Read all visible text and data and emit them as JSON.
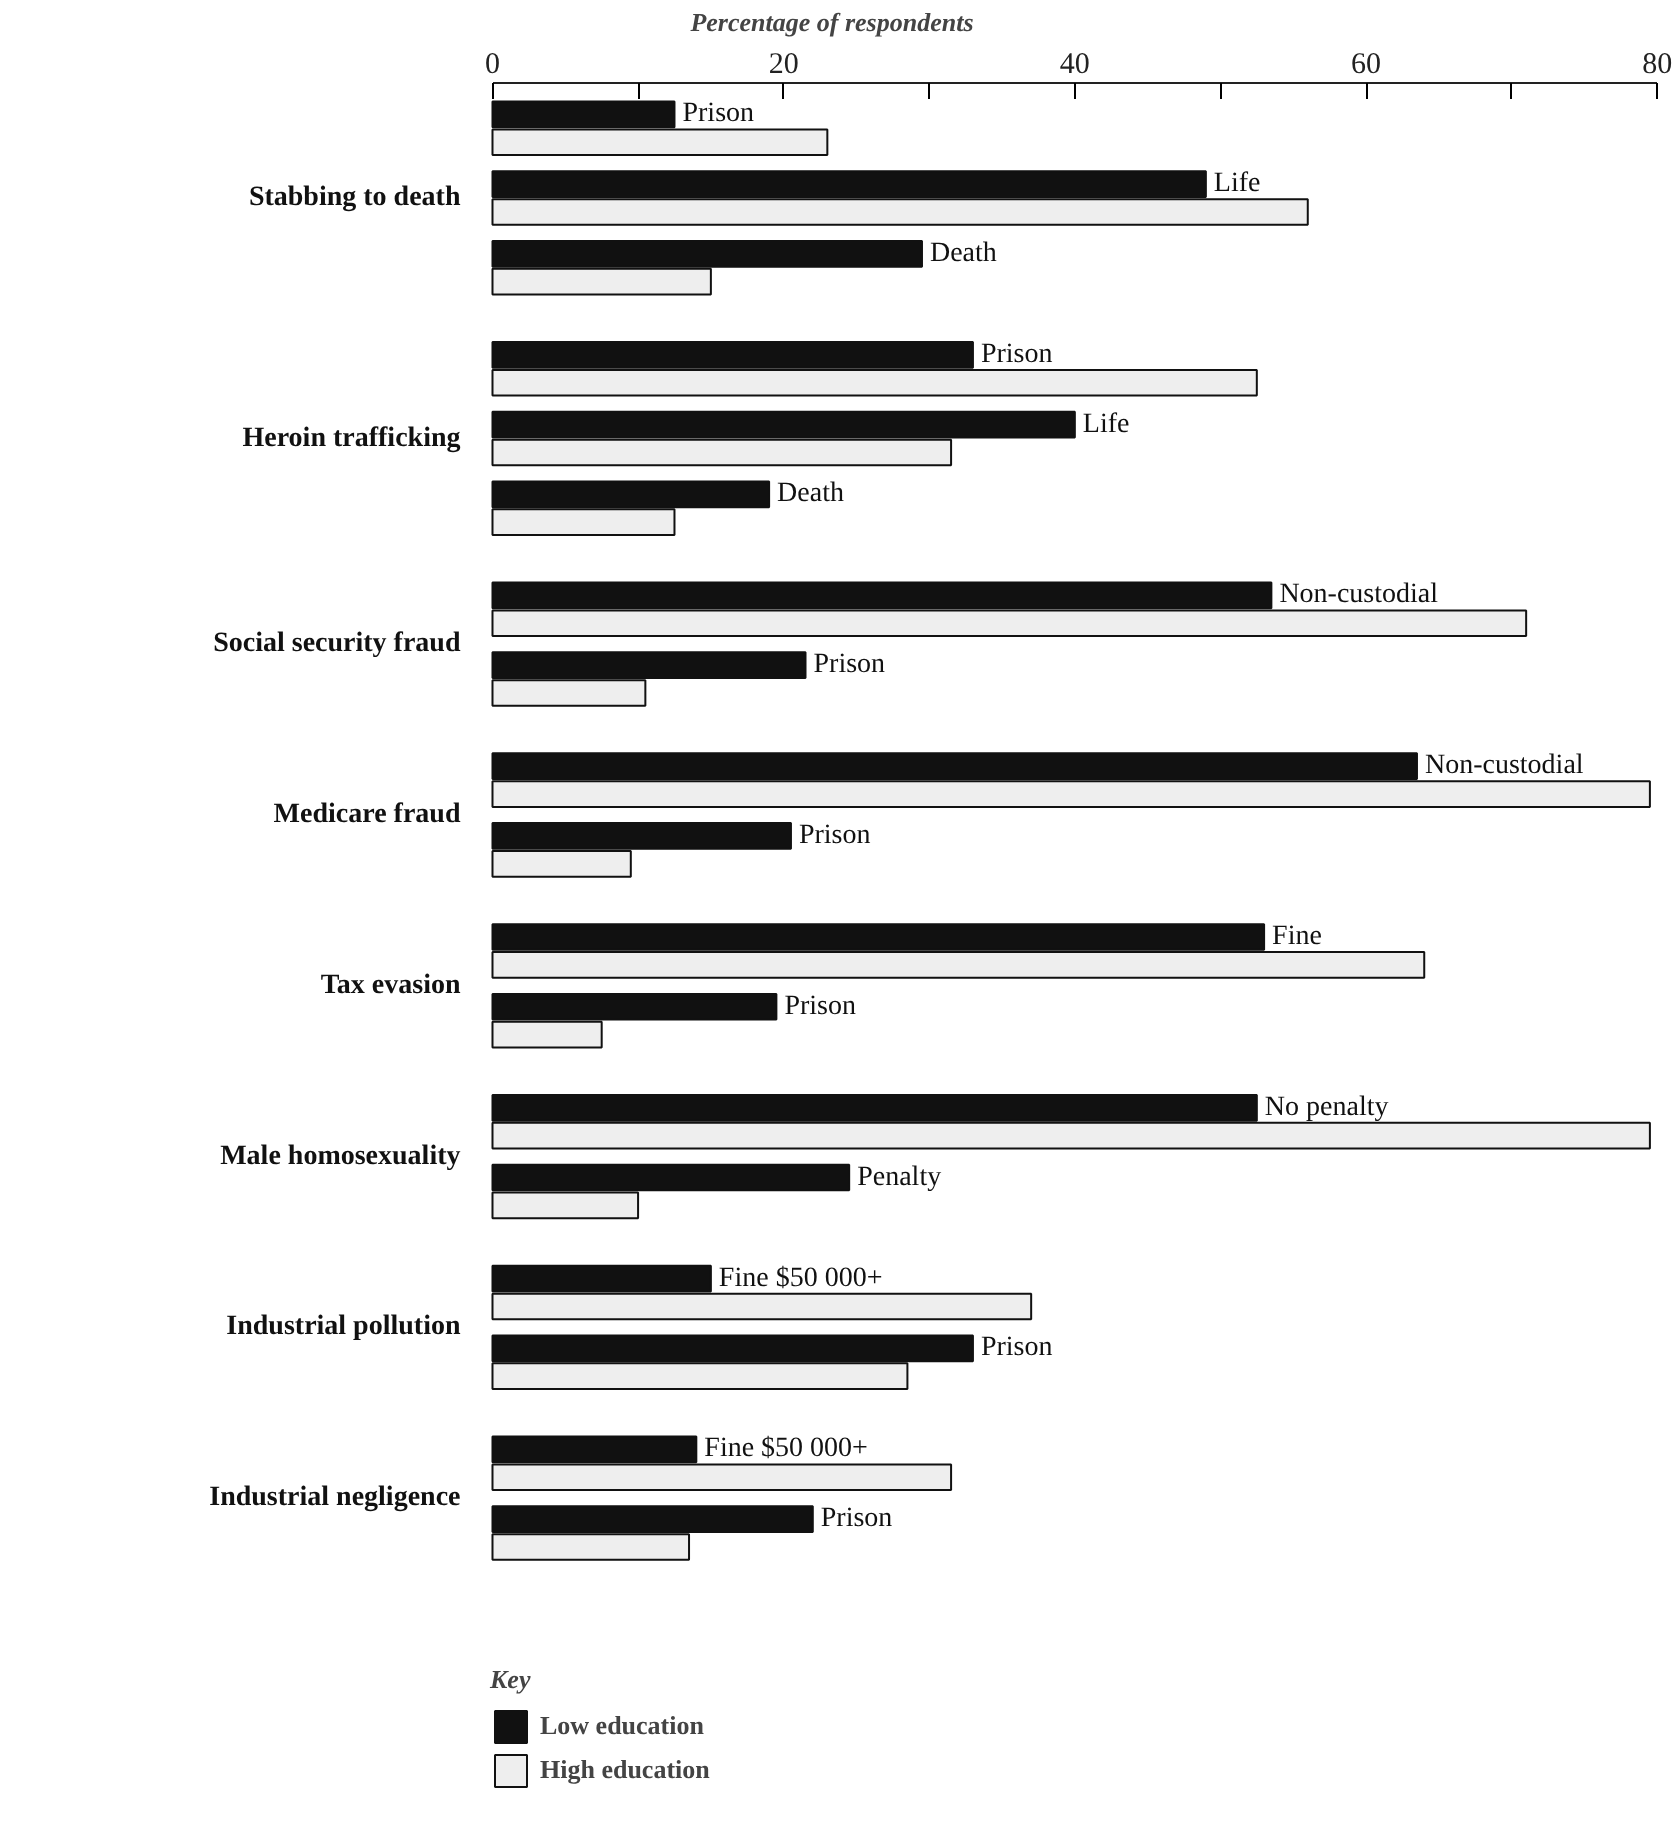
{
  "chart_data": {
    "type": "bar",
    "orientation": "horizontal",
    "xlabel": "Percentage of respondents",
    "xlim": [
      0,
      80
    ],
    "xticks": [
      0,
      {
        "value": 10,
        "label": null
      },
      20,
      {
        "value": 30,
        "label": null
      },
      40,
      {
        "value": 50,
        "label": null
      },
      60,
      {
        "value": 70,
        "label": null
      },
      80
    ],
    "categories": [
      "Prison",
      "Life",
      "Death",
      "Prison",
      "Life",
      "Death",
      "Non-custodial",
      "Prison",
      "Non-custodial",
      "Prison",
      "Fine",
      "Prison",
      "No penalty",
      "Penalty",
      "Fine $50 000+",
      "Prison",
      "Fine $50 000+",
      "Prison"
    ],
    "series": [
      {
        "name": "Low education",
        "color": "#111111",
        "values": [
          12.5,
          49,
          29.5,
          33,
          40,
          19,
          53.5,
          21.5,
          63.5,
          20.5,
          53,
          19.5,
          52.5,
          24.5,
          15,
          33,
          14,
          22
        ]
      },
      {
        "name": "High education",
        "color": "#eeeeee",
        "values": [
          23,
          56,
          15,
          52.5,
          31.5,
          12.5,
          71,
          10.5,
          79.5,
          9.5,
          64,
          7.5,
          79.5,
          10,
          37,
          28.5,
          31.5,
          13.5
        ]
      }
    ],
    "annotations": [
      "Stabbing to death",
      "Heroin trafficking",
      "Social security fraud",
      "Medicare fraud",
      "Tax evasion",
      "Male homosexuality",
      "Industrial pollution",
      "Industrial negligence"
    ],
    "legend": "bottom left",
    "legend_title": "Key"
  }
}
